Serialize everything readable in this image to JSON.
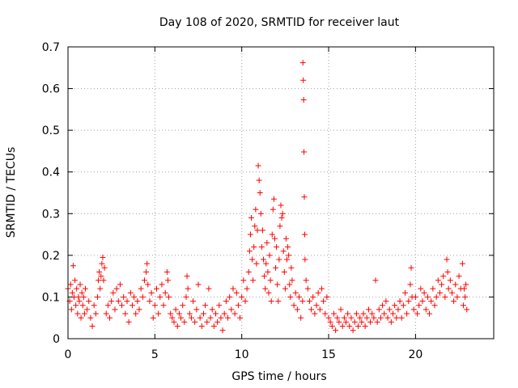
{
  "chart_data": {
    "type": "scatter",
    "title": "Day 108 of 2020, SRMTID for receiver laut",
    "xlabel": "GPS time / hours",
    "ylabel": "SRMTID / TECUs",
    "xlim": [
      0,
      24.5
    ],
    "ylim": [
      0,
      0.7
    ],
    "xticks": [
      0,
      5,
      10,
      15,
      20
    ],
    "xtick_labels": [
      "0",
      "5",
      "10",
      "15",
      "20"
    ],
    "yticks": [
      0,
      0.1,
      0.2,
      0.3,
      0.4,
      0.5,
      0.6,
      0.7
    ],
    "ytick_labels": [
      "0",
      "0.1",
      "0.2",
      "0.3",
      "0.4",
      "0.5",
      "0.6",
      "0.7"
    ],
    "grid": true,
    "marker": "+",
    "color": "#ff0000",
    "series": [
      {
        "name": "SRMTID",
        "points": [
          [
            0.0,
            0.12
          ],
          [
            0.1,
            0.09
          ],
          [
            0.15,
            0.13
          ],
          [
            0.2,
            0.07
          ],
          [
            0.25,
            0.11
          ],
          [
            0.3,
            0.175
          ],
          [
            0.35,
            0.1
          ],
          [
            0.4,
            0.14
          ],
          [
            0.45,
            0.08
          ],
          [
            0.5,
            0.12
          ],
          [
            0.55,
            0.06
          ],
          [
            0.6,
            0.1
          ],
          [
            0.65,
            0.09
          ],
          [
            0.7,
            0.13
          ],
          [
            0.75,
            0.05
          ],
          [
            0.8,
            0.11
          ],
          [
            0.85,
            0.08
          ],
          [
            0.9,
            0.1
          ],
          [
            0.95,
            0.06
          ],
          [
            1.0,
            0.12
          ],
          [
            1.1,
            0.07
          ],
          [
            1.2,
            0.09
          ],
          [
            1.3,
            0.05
          ],
          [
            1.4,
            0.03
          ],
          [
            1.5,
            0.08
          ],
          [
            1.6,
            0.06
          ],
          [
            1.7,
            0.1
          ],
          [
            1.75,
            0.14
          ],
          [
            1.8,
            0.16
          ],
          [
            1.85,
            0.12
          ],
          [
            1.9,
            0.15
          ],
          [
            1.95,
            0.18
          ],
          [
            2.0,
            0.195
          ],
          [
            2.05,
            0.14
          ],
          [
            2.1,
            0.17
          ],
          [
            2.2,
            0.06
          ],
          [
            2.3,
            0.08
          ],
          [
            2.4,
            0.05
          ],
          [
            2.5,
            0.09
          ],
          [
            2.6,
            0.11
          ],
          [
            2.7,
            0.07
          ],
          [
            2.8,
            0.12
          ],
          [
            2.9,
            0.09
          ],
          [
            3.0,
            0.13
          ],
          [
            3.1,
            0.08
          ],
          [
            3.2,
            0.1
          ],
          [
            3.3,
            0.06
          ],
          [
            3.4,
            0.09
          ],
          [
            3.5,
            0.04
          ],
          [
            3.6,
            0.11
          ],
          [
            3.7,
            0.08
          ],
          [
            3.8,
            0.1
          ],
          [
            3.9,
            0.06
          ],
          [
            4.0,
            0.09
          ],
          [
            4.1,
            0.07
          ],
          [
            4.2,
            0.12
          ],
          [
            4.3,
            0.1
          ],
          [
            4.4,
            0.14
          ],
          [
            4.5,
            0.16
          ],
          [
            4.55,
            0.18
          ],
          [
            4.6,
            0.13
          ],
          [
            4.7,
            0.09
          ],
          [
            4.8,
            0.11
          ],
          [
            4.9,
            0.05
          ],
          [
            5.0,
            0.08
          ],
          [
            5.1,
            0.12
          ],
          [
            5.2,
            0.06
          ],
          [
            5.3,
            0.1
          ],
          [
            5.4,
            0.13
          ],
          [
            5.5,
            0.08
          ],
          [
            5.6,
            0.11
          ],
          [
            5.7,
            0.16
          ],
          [
            5.75,
            0.14
          ],
          [
            5.8,
            0.1
          ],
          [
            5.9,
            0.06
          ],
          [
            6.0,
            0.05
          ],
          [
            6.1,
            0.04
          ],
          [
            6.2,
            0.07
          ],
          [
            6.3,
            0.03
          ],
          [
            6.4,
            0.06
          ],
          [
            6.5,
            0.05
          ],
          [
            6.6,
            0.08
          ],
          [
            6.7,
            0.04
          ],
          [
            6.8,
            0.1
          ],
          [
            6.85,
            0.15
          ],
          [
            6.9,
            0.12
          ],
          [
            7.0,
            0.06
          ],
          [
            7.1,
            0.05
          ],
          [
            7.2,
            0.09
          ],
          [
            7.3,
            0.04
          ],
          [
            7.4,
            0.07
          ],
          [
            7.5,
            0.13
          ],
          [
            7.6,
            0.05
          ],
          [
            7.7,
            0.03
          ],
          [
            7.8,
            0.06
          ],
          [
            7.9,
            0.08
          ],
          [
            8.0,
            0.04
          ],
          [
            8.1,
            0.12
          ],
          [
            8.2,
            0.05
          ],
          [
            8.3,
            0.07
          ],
          [
            8.4,
            0.03
          ],
          [
            8.5,
            0.06
          ],
          [
            8.6,
            0.04
          ],
          [
            8.7,
            0.08
          ],
          [
            8.8,
            0.05
          ],
          [
            8.9,
            0.02
          ],
          [
            9.0,
            0.06
          ],
          [
            9.1,
            0.09
          ],
          [
            9.2,
            0.05
          ],
          [
            9.3,
            0.1
          ],
          [
            9.4,
            0.07
          ],
          [
            9.5,
            0.12
          ],
          [
            9.6,
            0.06
          ],
          [
            9.7,
            0.11
          ],
          [
            9.8,
            0.08
          ],
          [
            9.9,
            0.05
          ],
          [
            10.0,
            0.1
          ],
          [
            10.1,
            0.14
          ],
          [
            10.2,
            0.09
          ],
          [
            10.3,
            0.12
          ],
          [
            10.4,
            0.16
          ],
          [
            10.45,
            0.21
          ],
          [
            10.5,
            0.25
          ],
          [
            10.55,
            0.29
          ],
          [
            10.6,
            0.19
          ],
          [
            10.65,
            0.14
          ],
          [
            10.7,
            0.22
          ],
          [
            10.75,
            0.27
          ],
          [
            10.8,
            0.31
          ],
          [
            10.85,
            0.18
          ],
          [
            10.9,
            0.26
          ],
          [
            10.95,
            0.415
          ],
          [
            11.0,
            0.38
          ],
          [
            11.05,
            0.35
          ],
          [
            11.1,
            0.3
          ],
          [
            11.15,
            0.22
          ],
          [
            11.2,
            0.26
          ],
          [
            11.25,
            0.19
          ],
          [
            11.3,
            0.15
          ],
          [
            11.35,
            0.12
          ],
          [
            11.4,
            0.18
          ],
          [
            11.45,
            0.23
          ],
          [
            11.5,
            0.16
          ],
          [
            11.55,
            0.11
          ],
          [
            11.6,
            0.2
          ],
          [
            11.65,
            0.14
          ],
          [
            11.7,
            0.09
          ],
          [
            11.75,
            0.25
          ],
          [
            11.8,
            0.31
          ],
          [
            11.85,
            0.335
          ],
          [
            11.9,
            0.24
          ],
          [
            11.95,
            0.17
          ],
          [
            12.0,
            0.22
          ],
          [
            12.05,
            0.13
          ],
          [
            12.1,
            0.09
          ],
          [
            12.15,
            0.19
          ],
          [
            12.2,
            0.27
          ],
          [
            12.25,
            0.32
          ],
          [
            12.3,
            0.29
          ],
          [
            12.35,
            0.3
          ],
          [
            12.4,
            0.21
          ],
          [
            12.45,
            0.16
          ],
          [
            12.5,
            0.12
          ],
          [
            12.55,
            0.24
          ],
          [
            12.6,
            0.19
          ],
          [
            12.65,
            0.22
          ],
          [
            12.7,
            0.2
          ],
          [
            12.75,
            0.13
          ],
          [
            12.8,
            0.1
          ],
          [
            12.85,
            0.17
          ],
          [
            12.9,
            0.14
          ],
          [
            13.0,
            0.08
          ],
          [
            13.1,
            0.11
          ],
          [
            13.2,
            0.07
          ],
          [
            13.3,
            0.1
          ],
          [
            13.4,
            0.05
          ],
          [
            13.5,
            0.09
          ],
          [
            13.52,
            0.662
          ],
          [
            13.54,
            0.62
          ],
          [
            13.56,
            0.573
          ],
          [
            13.58,
            0.448
          ],
          [
            13.6,
            0.34
          ],
          [
            13.62,
            0.25
          ],
          [
            13.64,
            0.19
          ],
          [
            13.7,
            0.14
          ],
          [
            13.8,
            0.12
          ],
          [
            13.9,
            0.09
          ],
          [
            14.0,
            0.07
          ],
          [
            14.1,
            0.1
          ],
          [
            14.2,
            0.06
          ],
          [
            14.3,
            0.08
          ],
          [
            14.4,
            0.11
          ],
          [
            14.5,
            0.07
          ],
          [
            14.6,
            0.12
          ],
          [
            14.7,
            0.09
          ],
          [
            14.8,
            0.06
          ],
          [
            14.9,
            0.1
          ],
          [
            15.0,
            0.05
          ],
          [
            15.1,
            0.04
          ],
          [
            15.2,
            0.03
          ],
          [
            15.3,
            0.06
          ],
          [
            15.4,
            0.02
          ],
          [
            15.5,
            0.05
          ],
          [
            15.6,
            0.04
          ],
          [
            15.7,
            0.07
          ],
          [
            15.8,
            0.03
          ],
          [
            15.9,
            0.05
          ],
          [
            16.0,
            0.04
          ],
          [
            16.1,
            0.06
          ],
          [
            16.2,
            0.03
          ],
          [
            16.3,
            0.05
          ],
          [
            16.4,
            0.02
          ],
          [
            16.5,
            0.04
          ],
          [
            16.6,
            0.06
          ],
          [
            16.7,
            0.03
          ],
          [
            16.8,
            0.05
          ],
          [
            16.9,
            0.04
          ],
          [
            17.0,
            0.06
          ],
          [
            17.1,
            0.03
          ],
          [
            17.2,
            0.05
          ],
          [
            17.3,
            0.07
          ],
          [
            17.4,
            0.04
          ],
          [
            17.5,
            0.06
          ],
          [
            17.6,
            0.05
          ],
          [
            17.7,
            0.14
          ],
          [
            17.8,
            0.04
          ],
          [
            17.9,
            0.07
          ],
          [
            18.0,
            0.05
          ],
          [
            18.1,
            0.08
          ],
          [
            18.2,
            0.06
          ],
          [
            18.3,
            0.09
          ],
          [
            18.4,
            0.05
          ],
          [
            18.5,
            0.07
          ],
          [
            18.6,
            0.04
          ],
          [
            18.7,
            0.06
          ],
          [
            18.8,
            0.08
          ],
          [
            18.9,
            0.05
          ],
          [
            19.0,
            0.07
          ],
          [
            19.1,
            0.09
          ],
          [
            19.2,
            0.05
          ],
          [
            19.3,
            0.08
          ],
          [
            19.4,
            0.11
          ],
          [
            19.5,
            0.06
          ],
          [
            19.6,
            0.09
          ],
          [
            19.7,
            0.13
          ],
          [
            19.75,
            0.17
          ],
          [
            19.8,
            0.1
          ],
          [
            19.9,
            0.07
          ],
          [
            20.0,
            0.1
          ],
          [
            20.1,
            0.06
          ],
          [
            20.2,
            0.08
          ],
          [
            20.3,
            0.12
          ],
          [
            20.4,
            0.09
          ],
          [
            20.5,
            0.11
          ],
          [
            20.6,
            0.07
          ],
          [
            20.7,
            0.1
          ],
          [
            20.8,
            0.06
          ],
          [
            20.9,
            0.09
          ],
          [
            21.0,
            0.12
          ],
          [
            21.1,
            0.08
          ],
          [
            21.2,
            0.1
          ],
          [
            21.3,
            0.14
          ],
          [
            21.4,
            0.11
          ],
          [
            21.5,
            0.13
          ],
          [
            21.6,
            0.15
          ],
          [
            21.7,
            0.1
          ],
          [
            21.8,
            0.19
          ],
          [
            21.85,
            0.16
          ],
          [
            21.9,
            0.12
          ],
          [
            22.0,
            0.14
          ],
          [
            22.1,
            0.11
          ],
          [
            22.2,
            0.09
          ],
          [
            22.3,
            0.13
          ],
          [
            22.4,
            0.1
          ],
          [
            22.5,
            0.15
          ],
          [
            22.6,
            0.12
          ],
          [
            22.7,
            0.18
          ],
          [
            22.75,
            0.08
          ],
          [
            22.8,
            0.12
          ],
          [
            22.85,
            0.1
          ],
          [
            22.9,
            0.13
          ],
          [
            22.95,
            0.07
          ]
        ]
      }
    ]
  }
}
